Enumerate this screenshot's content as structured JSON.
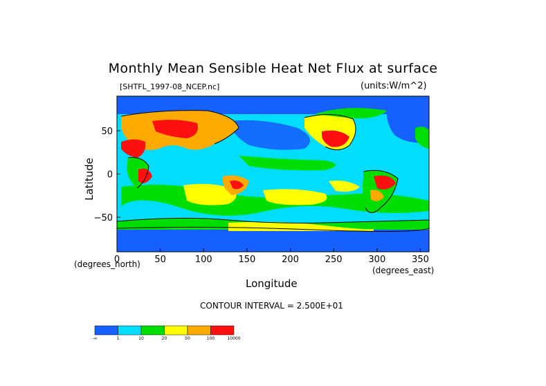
{
  "chart_data": {
    "type": "heatmap",
    "title": "Monthly Mean Sensible Heat Net Flux at surface",
    "subtitle_left": "[SHTFL_1997-08_NCEP.nc]",
    "subtitle_right": "(units:W/m^2)",
    "xlabel": "Longitude",
    "ylabel": "Latitude",
    "x_unit_label": "(degrees_north)",
    "y_unit_label": "(degrees_east)",
    "xlim": [
      0,
      360
    ],
    "ylim": [
      -90,
      90
    ],
    "x_ticks": [
      0,
      50,
      100,
      150,
      200,
      250,
      300,
      350
    ],
    "y_ticks": [
      50,
      0,
      -50
    ],
    "contour_interval": "CONTOUR INTERVAL = 2.500E+01",
    "colorbar": {
      "colors": [
        "#1560ff",
        "#00ddff",
        "#00dd00",
        "#ffff00",
        "#ffaa00",
        "#ff1010"
      ],
      "labels": [
        "-∞",
        "1",
        "10",
        "20",
        "50",
        "100",
        "10000"
      ]
    }
  }
}
